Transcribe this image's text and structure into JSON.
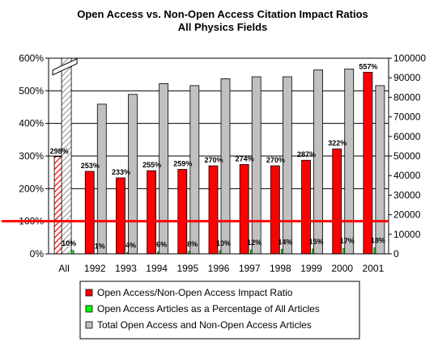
{
  "chart_data": {
    "type": "bar",
    "title": "Open Access vs. Non-Open Access Citation Impact Ratios",
    "subtitle": "All Physics Fields",
    "categories": [
      "All",
      "1992",
      "1993",
      "1994",
      "1995",
      "1996",
      "1997",
      "1998",
      "1999",
      "2000",
      "2001"
    ],
    "y_left": {
      "ticks": [
        "0%",
        "100%",
        "200%",
        "300%",
        "400%",
        "500%",
        "600%"
      ],
      "ylim": [
        0,
        600
      ],
      "unit": "%"
    },
    "y_right": {
      "ticks": [
        "0",
        "10000",
        "20000",
        "30000",
        "40000",
        "50000",
        "60000",
        "70000",
        "80000",
        "90000",
        "100000"
      ],
      "ylim": [
        0,
        100000
      ]
    },
    "reference_line": {
      "value": 100,
      "axis": "left",
      "color": "#ff0000"
    },
    "axis_break": "All",
    "series": [
      {
        "name": "Open Access/Non-Open Access Impact Ratio",
        "axis": "left",
        "color": "#ff0000",
        "values": [
          298,
          253,
          233,
          255,
          259,
          270,
          274,
          270,
          287,
          322,
          557
        ],
        "labels": [
          "298%",
          "253%",
          "233%",
          "255%",
          "259%",
          "270%",
          "274%",
          "270%",
          "287%",
          "322%",
          "557%"
        ],
        "pattern_for": [
          "All"
        ]
      },
      {
        "name": "Open Access Articles as a Percentage of All Articles",
        "axis": "left",
        "color": "#00ff00",
        "values": [
          10,
          1,
          4,
          6,
          8,
          10,
          12,
          14,
          15,
          17,
          18
        ],
        "labels": [
          "10%",
          "1%",
          "4%",
          "6%",
          "8%",
          "10%",
          "12%",
          "14%",
          "15%",
          "17%",
          "18%"
        ]
      },
      {
        "name": "Total Open Access and Non-Open Access Articles",
        "axis": "right",
        "color": "#c0c0c0",
        "values": [
          null,
          76500,
          81500,
          87000,
          86000,
          89500,
          90500,
          90500,
          94000,
          94500,
          86000
        ],
        "pattern_for": [
          "All"
        ]
      }
    ],
    "legend_position": "bottom",
    "grid": true
  }
}
